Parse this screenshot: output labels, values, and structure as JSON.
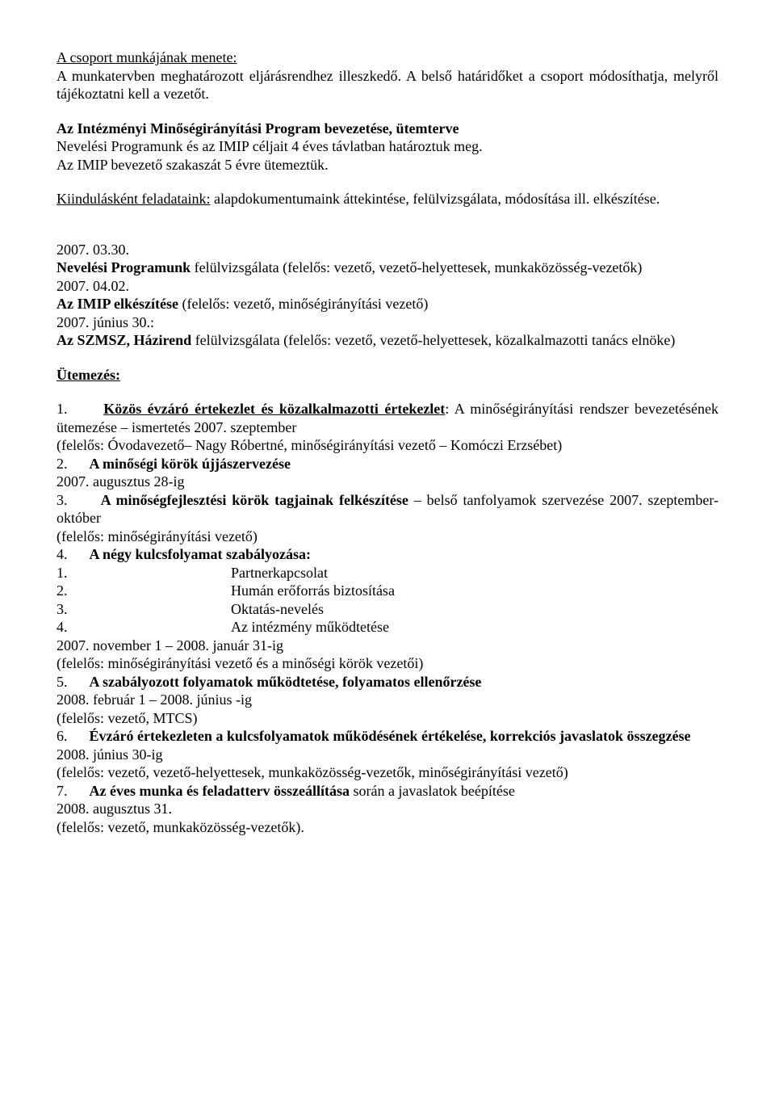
{
  "intro": {
    "line1": "A csoport munkájának menete:",
    "line2": "A munkatervben meghatározott eljárásrendhez illeszkedő. A belső határidőket a csoport módosíthatja, melyről tájékoztatni kell a vezetőt."
  },
  "section1": {
    "title": "Az Intézményi Minőségirányítási Program bevezetése, ütemterve",
    "p1": "Nevelési Programunk és az IMIP céljait 4 éves távlatban határoztuk meg.",
    "p2": "Az IMIP bevezető szakaszát 5 évre ütemeztük.",
    "p3_prefix": "Kiindulásként feladataink:",
    "p3_rest": " alapdokumentumaink áttekintése, felülvizsgálata, módosítása ill. elkészítése."
  },
  "dates": {
    "d1": "2007. 03.30.",
    "d1_text_prefix": "Nevelési Programunk",
    "d1_text_rest": " felülvizsgálata (felelős: vezető, vezető-helyettesek, munkaközösség-vezetők)",
    "d2": "2007. 04.02.",
    "d2_text_prefix": "Az IMIP elkészítése ",
    "d2_text_rest": "(felelős: vezető, minőségirányítási vezető)",
    "d3": "2007. június 30.:",
    "d3_text_prefix": "Az SZMSZ, Házirend ",
    "d3_text_rest": "felülvizsgálata (felelős: vezető, vezető-helyettesek, közalkalmazotti tanács elnöke)"
  },
  "utemezes_title": "Ütemezés:",
  "items": {
    "i1": {
      "num": "1.",
      "title_u": "Közös évzáró értekezlet és közalkalmazotti értekezlet",
      "title_rest": ": A minőségirányítási rendszer bevezetésének ütemezése – ismertetés 2007. szeptember",
      "sub": "(felelős: Óvodavezető– Nagy Róbertné, minőségirányítási vezető – Komóczi Erzsébet)"
    },
    "i2": {
      "num": "2.",
      "title": "A minőségi körök újjászervezése",
      "sub": "2007. augusztus 28-ig"
    },
    "i3": {
      "num": "3.",
      "title": "A minőségfejlesztési körök tagjainak felkészítése",
      "title_rest": " – belső tanfolyamok szervezése 2007. szeptember-október",
      "sub": "(felelős: minőségirányítási vezető)"
    },
    "i4": {
      "num": "4.",
      "title": "A négy kulcsfolyamat szabályozása:",
      "s1n": "1.",
      "s1t": "Partnerkapcsolat",
      "s2n": "2.",
      "s2t": "Humán erőforrás biztosítása",
      "s3n": "3.",
      "s3t": "Oktatás-nevelés",
      "s4n": "4.",
      "s4t": "Az intézmény működtetése",
      "sub1": "2007. november 1 – 2008. január 31-ig",
      "sub2": "(felelős: minőségirányítási vezető és a minőségi körök vezetői)"
    },
    "i5": {
      "num": "5.",
      "title": "A szabályozott folyamatok működtetése, folyamatos ellenőrzése",
      "sub1": "2008. február 1 – 2008. június -ig",
      "sub2": "(felelős: vezető, MTCS)"
    },
    "i6": {
      "num": "6.",
      "title": "Évzáró értekezleten a kulcsfolyamatok működésének értékelése, korrekciós javaslatok összegzése",
      "sub1": "2008. június 30-ig",
      "sub2": "(felelős: vezető, vezető-helyettesek, munkaközösség-vezetők, minőségirányítási vezető)"
    },
    "i7": {
      "num": "7.",
      "title": "Az éves munka és feladatterv összeállítása ",
      "title_rest": "során a javaslatok beépítése",
      "sub1": "2008. augusztus 31.",
      "sub2": "(felelős: vezető, munkaközösség-vezetők)."
    }
  }
}
